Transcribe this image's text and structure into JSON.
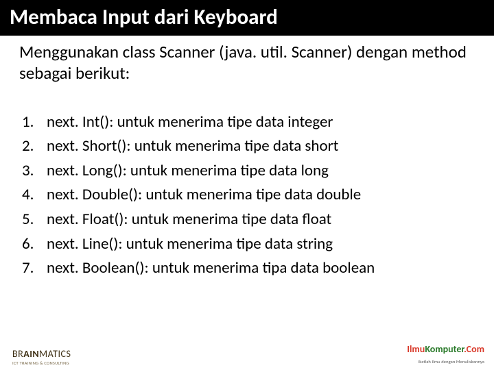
{
  "title": "Membaca Input dari Keyboard",
  "intro": "Menggunakan class Scanner (java. util. Scanner) dengan method sebagai berikut:",
  "items": [
    "next. Int(): untuk menerima tipe data integer",
    "next. Short(): untuk menerima tipe data short",
    "next. Long(): untuk menerima tipe data long",
    "next. Double(): untuk menerima tipe data double",
    "next. Float(): untuk menerima tipe data float",
    "next. Line(): untuk menerima tipe data string",
    "next. Boolean(): untuk menerima tipa data boolean"
  ],
  "footer": {
    "left_brand_a": "BR",
    "left_brand_b": "AIN",
    "left_brand_c": "MATICS",
    "left_tag": "ICT TRAINING & CONSULTING",
    "right_a": "Ilmu",
    "right_b": "Komputer",
    "right_c": ".Com",
    "right_tag": "Ikatlah Ilmu dengan Menuliskannya"
  }
}
